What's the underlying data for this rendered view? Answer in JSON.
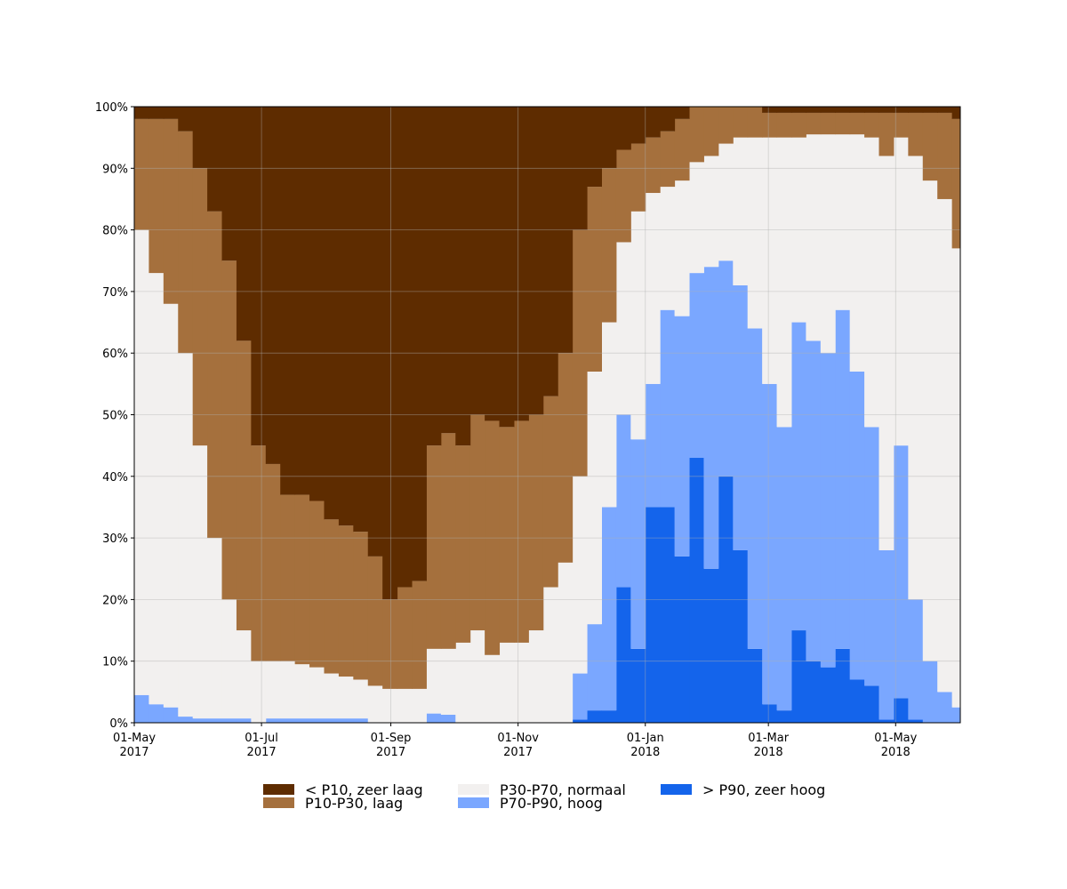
{
  "chart_data": {
    "type": "stacked-step-area",
    "x": [
      "2017-05-01",
      "2017-05-08",
      "2017-05-15",
      "2017-05-22",
      "2017-05-29",
      "2017-06-05",
      "2017-06-12",
      "2017-06-19",
      "2017-06-26",
      "2017-07-03",
      "2017-07-10",
      "2017-07-17",
      "2017-07-24",
      "2017-07-31",
      "2017-08-07",
      "2017-08-14",
      "2017-08-21",
      "2017-08-28",
      "2017-09-04",
      "2017-09-11",
      "2017-09-18",
      "2017-09-25",
      "2017-10-02",
      "2017-10-09",
      "2017-10-16",
      "2017-10-23",
      "2017-10-30",
      "2017-11-06",
      "2017-11-13",
      "2017-11-20",
      "2017-11-27",
      "2017-12-04",
      "2017-12-11",
      "2017-12-18",
      "2017-12-25",
      "2018-01-01",
      "2018-01-08",
      "2018-01-15",
      "2018-01-22",
      "2018-01-29",
      "2018-02-05",
      "2018-02-12",
      "2018-02-19",
      "2018-02-26",
      "2018-03-05",
      "2018-03-12",
      "2018-03-19",
      "2018-03-26",
      "2018-04-02",
      "2018-04-09",
      "2018-04-16",
      "2018-04-23",
      "2018-04-30",
      "2018-05-07",
      "2018-05-14",
      "2018-05-21",
      "2018-05-28"
    ],
    "series": [
      {
        "name": "< P10, zeer laag",
        "color": "#5e2c00",
        "values": [
          2,
          2,
          2,
          4,
          10,
          17,
          25,
          38,
          55,
          58,
          63,
          63,
          64,
          67,
          68,
          69,
          73,
          80,
          78,
          77,
          55,
          53,
          55,
          50,
          51,
          52,
          51,
          50,
          47,
          40,
          20,
          13,
          10,
          7,
          6,
          5,
          4,
          2,
          0,
          0,
          0,
          0,
          0,
          1,
          1,
          1,
          1,
          1,
          1,
          1,
          1,
          1,
          1,
          1,
          1,
          1,
          2
        ]
      },
      {
        "name": "P10-P30, laag",
        "color": "#a5703d",
        "values": [
          18,
          25,
          30,
          36,
          45,
          53,
          55,
          47,
          35,
          32,
          27,
          27.5,
          27,
          25,
          24.5,
          24,
          21,
          14.5,
          16.5,
          17.5,
          33,
          35,
          32,
          35,
          38,
          35,
          36,
          35,
          31,
          34,
          40,
          30,
          25,
          15,
          11,
          9,
          9,
          10,
          9,
          8,
          6,
          5,
          5,
          4,
          4,
          4,
          3.5,
          3.5,
          3.5,
          3.5,
          4,
          7,
          4,
          7,
          11,
          14,
          21
        ]
      },
      {
        "name": "P30-P70, normaal",
        "color": "#f2f0ef",
        "values": [
          75.5,
          70,
          65.5,
          59,
          44.3,
          29.3,
          19.3,
          14.3,
          10,
          9.3,
          9.3,
          8.8,
          8.3,
          7.3,
          6.8,
          6.3,
          6,
          5.5,
          5.5,
          5.5,
          10.5,
          10.7,
          13,
          15,
          11,
          13,
          13,
          15,
          22,
          26,
          32,
          41,
          30,
          28,
          37,
          31,
          20,
          22,
          18,
          18,
          19,
          24,
          31,
          40,
          47,
          30,
          33.5,
          35.5,
          28.5,
          38.5,
          47,
          64,
          50,
          72,
          78,
          80,
          74.5
        ]
      },
      {
        "name": "P70-P90, hoog",
        "color": "#7aa7ff",
        "values": [
          4.5,
          3,
          2.5,
          1,
          0.7,
          0.7,
          0.7,
          0.7,
          0,
          0.7,
          0.7,
          0.7,
          0.7,
          0.7,
          0.7,
          0.7,
          0,
          0,
          0,
          0,
          1.5,
          1.3,
          0,
          0,
          0,
          0,
          0,
          0,
          0,
          0,
          7.5,
          14,
          33,
          28,
          34,
          20,
          32,
          39,
          30,
          49,
          35,
          43,
          52,
          52,
          46,
          50,
          52,
          51,
          55,
          50,
          42,
          27.5,
          41,
          19.5,
          10,
          5,
          2.5
        ]
      },
      {
        "name": "> P90, zeer hoog",
        "color": "#1464eb",
        "values": [
          0,
          0,
          0,
          0,
          0,
          0,
          0,
          0,
          0,
          0,
          0,
          0,
          0,
          0,
          0,
          0,
          0,
          0,
          0,
          0,
          0,
          0,
          0,
          0,
          0,
          0,
          0,
          0,
          0,
          0,
          0.5,
          2,
          2,
          22,
          12,
          35,
          35,
          27,
          43,
          25,
          40,
          28,
          12,
          3,
          2,
          15,
          10,
          9,
          12,
          7,
          6,
          0.5,
          4,
          0.5,
          0,
          0,
          0
        ]
      }
    ],
    "xlim": [
      "2017-05-01",
      "2018-06-01"
    ],
    "xticks": [
      {
        "value": "2017-05-01",
        "label": [
          "01-May",
          "2017"
        ]
      },
      {
        "value": "2017-07-01",
        "label": [
          "01-Jul",
          "2017"
        ]
      },
      {
        "value": "2017-09-01",
        "label": [
          "01-Sep",
          "2017"
        ]
      },
      {
        "value": "2017-11-01",
        "label": [
          "01-Nov",
          "2017"
        ]
      },
      {
        "value": "2018-01-01",
        "label": [
          "01-Jan",
          "2018"
        ]
      },
      {
        "value": "2018-03-01",
        "label": [
          "01-Mar",
          "2018"
        ]
      },
      {
        "value": "2018-05-01",
        "label": [
          "01-May",
          "2018"
        ]
      }
    ],
    "ylim": [
      0,
      100
    ],
    "yticks": [
      {
        "value": 0,
        "label": "0%"
      },
      {
        "value": 10,
        "label": "10%"
      },
      {
        "value": 20,
        "label": "20%"
      },
      {
        "value": 30,
        "label": "30%"
      },
      {
        "value": 40,
        "label": "40%"
      },
      {
        "value": 50,
        "label": "50%"
      },
      {
        "value": 60,
        "label": "60%"
      },
      {
        "value": 70,
        "label": "70%"
      },
      {
        "value": 80,
        "label": "80%"
      },
      {
        "value": 90,
        "label": "90%"
      },
      {
        "value": 100,
        "label": "100%"
      }
    ],
    "grid": true
  }
}
